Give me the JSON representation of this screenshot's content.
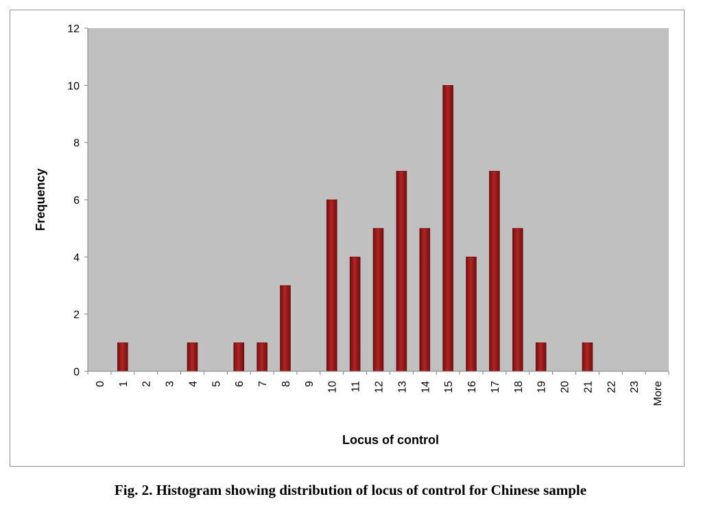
{
  "caption": "Fig. 2. Histogram showing distribution of locus of control for Chinese sample",
  "colors": {
    "plot_background": "#c0c0c0",
    "bar_dark": "#6e0f0f",
    "bar_mid": "#b32424",
    "bar_light": "#d45050"
  },
  "chart_data": {
    "type": "bar",
    "title": "",
    "xlabel": "Locus of control",
    "ylabel": "Frequency",
    "ylim": [
      0,
      12
    ],
    "yticks": [
      0,
      2,
      4,
      6,
      8,
      10,
      12
    ],
    "grid": false,
    "legend": "none",
    "categories": [
      "0",
      "1",
      "2",
      "3",
      "4",
      "5",
      "6",
      "7",
      "8",
      "9",
      "10",
      "11",
      "12",
      "13",
      "14",
      "15",
      "16",
      "17",
      "18",
      "19",
      "20",
      "21",
      "22",
      "23",
      "More"
    ],
    "values": [
      0,
      1,
      0,
      0,
      1,
      0,
      1,
      1,
      3,
      0,
      6,
      4,
      5,
      7,
      5,
      10,
      4,
      7,
      5,
      1,
      0,
      1,
      0,
      0,
      0
    ]
  }
}
